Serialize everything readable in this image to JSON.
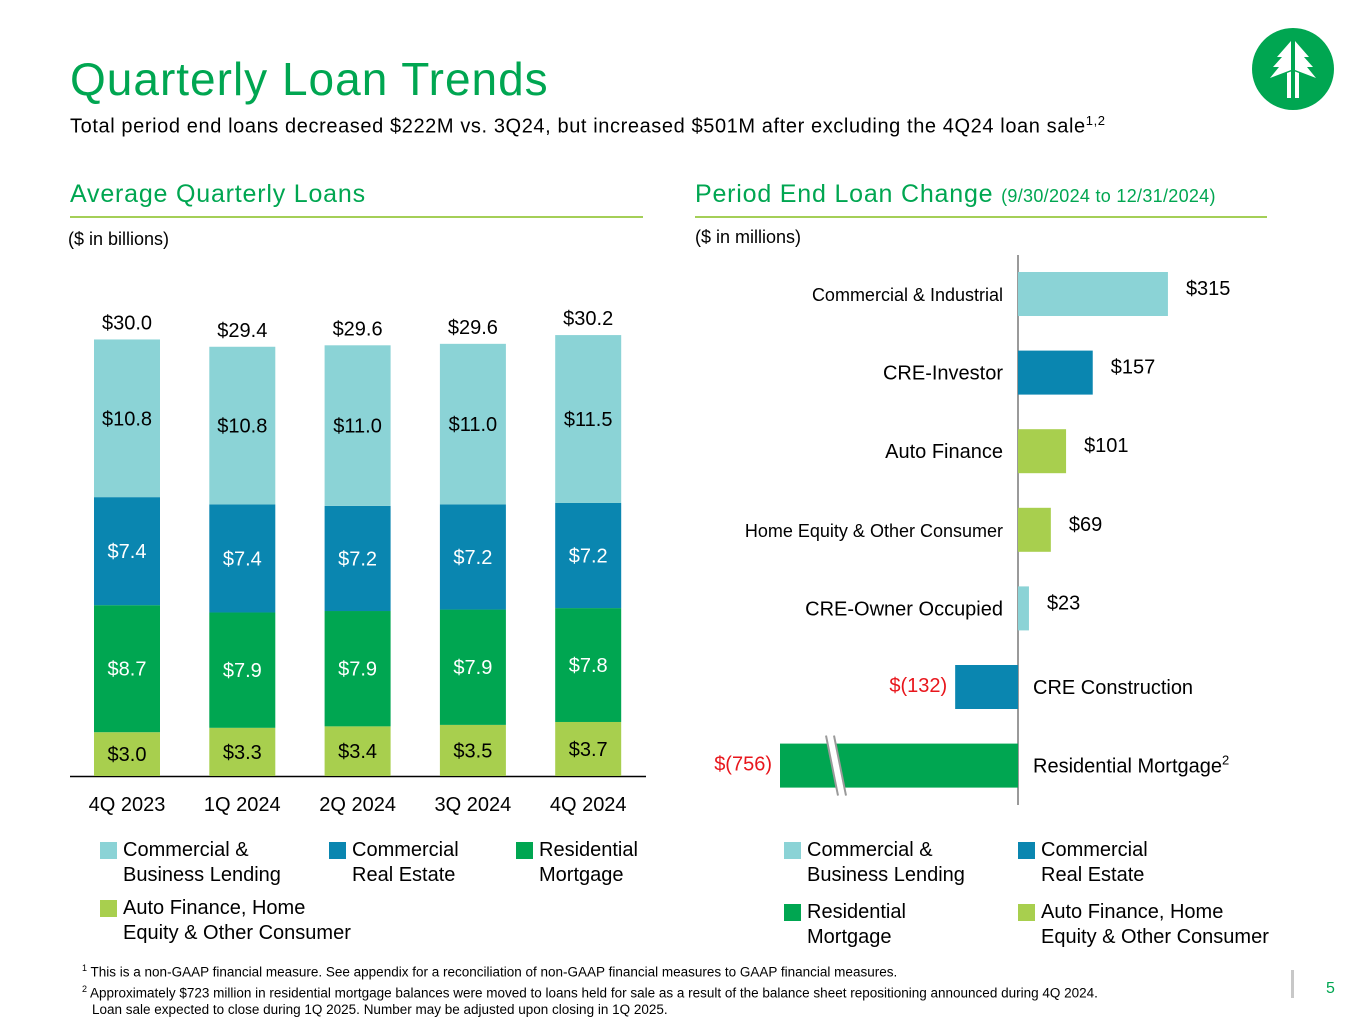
{
  "slide": {
    "title": "Quarterly Loan Trends",
    "subtitle": "Total period end loans decreased $222M vs. 3Q24, but increased $501M after excluding the 4Q24 loan sale",
    "subtitle_sup": "1,2",
    "page_number": "5"
  },
  "colors": {
    "light_teal": "#8bd3d6",
    "blue": "#0a86b0",
    "green": "#00a651",
    "lime": "#a8cf4e",
    "negative_text": "#e8161c",
    "title_green": "#00a651"
  },
  "left": {
    "title": "Average Quarterly Loans",
    "unit": "($ in billions)",
    "legend": [
      {
        "label": "Commercial &\nBusiness Lending",
        "color": "#8bd3d6"
      },
      {
        "label": "Commercial\nReal Estate",
        "color": "#0a86b0"
      },
      {
        "label": "Residential\nMortgage",
        "color": "#00a651"
      },
      {
        "label": "Auto Finance, Home\nEquity & Other Consumer",
        "color": "#a8cf4e"
      }
    ]
  },
  "right": {
    "title": "Period End Loan Change",
    "title_small": "(9/30/2024 to 12/31/2024)",
    "unit": "($ in millions)",
    "legend": [
      {
        "label": "Commercial &\nBusiness Lending",
        "color": "#8bd3d6"
      },
      {
        "label": "Commercial\nReal Estate",
        "color": "#0a86b0"
      },
      {
        "label": "Residential\nMortgage",
        "color": "#00a651"
      },
      {
        "label": "Auto Finance, Home\nEquity & Other Consumer",
        "color": "#a8cf4e"
      }
    ]
  },
  "chart_data": [
    {
      "type": "bar",
      "stacked": true,
      "title": "Average Quarterly Loans",
      "ylabel": "($ in billions)",
      "categories": [
        "4Q 2023",
        "1Q 2024",
        "2Q 2024",
        "3Q 2024",
        "4Q 2024"
      ],
      "series": [
        {
          "name": "Auto Finance, Home Equity & Other Consumer",
          "color": "#a8cf4e",
          "values": [
            3.0,
            3.3,
            3.4,
            3.5,
            3.7
          ],
          "labels": [
            "$3.0",
            "$3.3",
            "$3.4",
            "$3.5",
            "$3.7"
          ],
          "label_color": "#000000"
        },
        {
          "name": "Residential Mortgage",
          "color": "#00a651",
          "values": [
            8.7,
            7.9,
            7.9,
            7.9,
            7.8
          ],
          "labels": [
            "$8.7",
            "$7.9",
            "$7.9",
            "$7.9",
            "$7.8"
          ],
          "label_color": "#ffffff"
        },
        {
          "name": "Commercial Real Estate",
          "color": "#0a86b0",
          "values": [
            7.4,
            7.4,
            7.2,
            7.2,
            7.2
          ],
          "labels": [
            "$7.4",
            "$7.4",
            "$7.2",
            "$7.2",
            "$7.2"
          ],
          "label_color": "#ffffff"
        },
        {
          "name": "Commercial & Business Lending",
          "color": "#8bd3d6",
          "values": [
            10.8,
            10.8,
            11.0,
            11.0,
            11.5
          ],
          "labels": [
            "$10.8",
            "$10.8",
            "$11.0",
            "$11.0",
            "$11.5"
          ],
          "label_color": "#000000"
        }
      ],
      "totals": [
        30.0,
        29.4,
        29.6,
        29.6,
        30.2
      ],
      "total_labels": [
        "$30.0",
        "$29.4",
        "$29.6",
        "$29.6",
        "$30.2"
      ],
      "ylim": [
        0,
        32
      ],
      "grid": false
    },
    {
      "type": "bar",
      "orientation": "horizontal",
      "title": "Period End Loan Change (9/30/2024 to 12/31/2024)",
      "xlabel": "($ in millions)",
      "categories": [
        "Commercial & Industrial",
        "CRE-Investor",
        "Auto Finance",
        "Home Equity & Other Consumer",
        "CRE-Owner Occupied",
        "CRE Construction",
        "Residential Mortgage"
      ],
      "category_sup": [
        "",
        "",
        "",
        "",
        "",
        "",
        "2"
      ],
      "values": [
        315,
        157,
        101,
        69,
        23,
        -132,
        -756
      ],
      "labels": [
        "$315",
        "$157",
        "$101",
        "$69",
        "$23",
        "$(132)",
        "$(756)"
      ],
      "colors": [
        "#8bd3d6",
        "#0a86b0",
        "#a8cf4e",
        "#a8cf4e",
        "#8bd3d6",
        "#0a86b0",
        "#00a651"
      ],
      "axis_break_on": "Residential Mortgage",
      "grid": false
    }
  ],
  "footnotes": [
    {
      "sup": "1",
      "text": "This is a non-GAAP financial measure. See appendix for a reconciliation of non-GAAP financial measures to GAAP financial measures."
    },
    {
      "sup": "2",
      "text": "Approximately $723 million in residential mortgage balances were moved to loans held for sale as a result of the balance sheet repositioning announced during 4Q 2024."
    },
    {
      "sup": "",
      "text": "Loan sale expected to close during 1Q 2025. Number may be adjusted upon closing in 1Q 2025."
    }
  ]
}
